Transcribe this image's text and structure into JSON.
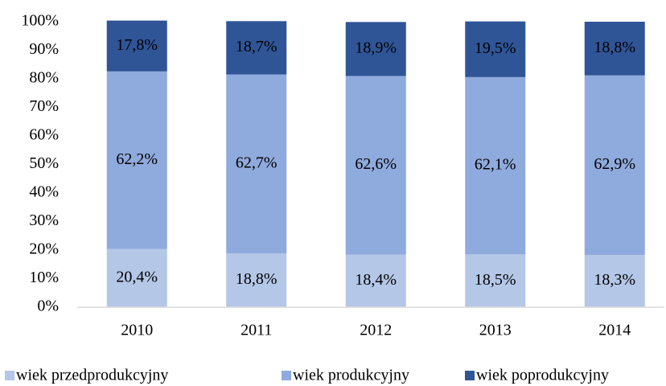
{
  "chart_data": {
    "type": "stacked_bar",
    "categories": [
      "2010",
      "2011",
      "2012",
      "2013",
      "2014"
    ],
    "series": [
      {
        "name": "wiek przedprodukcyjny",
        "color": "#b4c7e7",
        "values": [
          20.4,
          18.8,
          18.4,
          18.5,
          18.3
        ],
        "value_labels": [
          "20,4%",
          "18,8%",
          "18,4%",
          "18,5%",
          "18,3%"
        ]
      },
      {
        "name": "wiek produkcyjny",
        "color": "#8faadc",
        "values": [
          62.2,
          62.7,
          62.6,
          62.1,
          62.9
        ],
        "value_labels": [
          "62,2%",
          "62,7%",
          "62,6%",
          "62,1%",
          "62,9%"
        ]
      },
      {
        "name": "wiek poprodukcyjny",
        "color": "#2f5597",
        "values": [
          17.8,
          18.7,
          18.9,
          19.5,
          18.8
        ],
        "value_labels": [
          "17,8%",
          "18,7%",
          "18,9%",
          "19,5%",
          "18,8%"
        ]
      }
    ],
    "ylim": [
      0,
      100
    ],
    "yticks": [
      {
        "value": 0,
        "label": "0%"
      },
      {
        "value": 10,
        "label": "10%"
      },
      {
        "value": 20,
        "label": "20%"
      },
      {
        "value": 30,
        "label": "30%"
      },
      {
        "value": 40,
        "label": "40%"
      },
      {
        "value": 50,
        "label": "50%"
      },
      {
        "value": 60,
        "label": "60%"
      },
      {
        "value": 70,
        "label": "70%"
      },
      {
        "value": 80,
        "label": "80%"
      },
      {
        "value": 90,
        "label": "90%"
      },
      {
        "value": 100,
        "label": "100%"
      }
    ],
    "grid": false,
    "legend": "bottom"
  }
}
